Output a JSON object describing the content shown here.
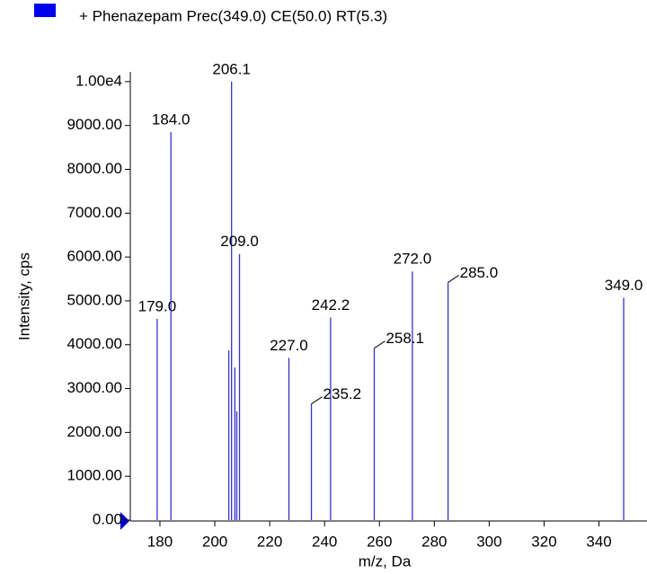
{
  "chart_data": {
    "type": "stem",
    "legend": "+ Phenazepam Prec(349.0) CE(50.0) RT(5.3)",
    "color": "#3333cc",
    "x_label": "m/z, Da",
    "y_label": "Intensity, cps",
    "x": [
      179.0,
      184.0,
      205.1,
      206.1,
      207.3,
      208.0,
      209.0,
      227.0,
      235.2,
      242.2,
      258.1,
      272.0,
      285.0,
      349.0
    ],
    "values": [
      4590,
      8850,
      3870,
      10000,
      3480,
      2480,
      6070,
      3700,
      2650,
      4620,
      3920,
      5670,
      5420,
      5070
    ],
    "value_labels": [
      "179.0",
      "184.0",
      null,
      "206.1",
      null,
      null,
      "209.0",
      "227.0",
      "235.2",
      "242.2",
      "258.1",
      "272.0",
      "285.0",
      "349.0"
    ],
    "xlim": [
      169.2,
      357.5
    ],
    "xticks": [
      180,
      200,
      220,
      240,
      260,
      280,
      300,
      320,
      340
    ],
    "ylim": [
      0,
      10100
    ],
    "yticks": [
      {
        "value": 0,
        "label": "0.00"
      },
      {
        "value": 1000,
        "label": "1000.00"
      },
      {
        "value": 2000,
        "label": "2000.00"
      },
      {
        "value": 3000,
        "label": "3000.00"
      },
      {
        "value": 4000,
        "label": "4000.00"
      },
      {
        "value": 5000,
        "label": "5000.00"
      },
      {
        "value": 6000,
        "label": "6000.00"
      },
      {
        "value": 7000,
        "label": "7000.00"
      },
      {
        "value": 8000,
        "label": "8000.00"
      },
      {
        "value": 9000,
        "label": "9000.00"
      },
      {
        "value": 10000,
        "label": "1.00e4"
      }
    ]
  }
}
